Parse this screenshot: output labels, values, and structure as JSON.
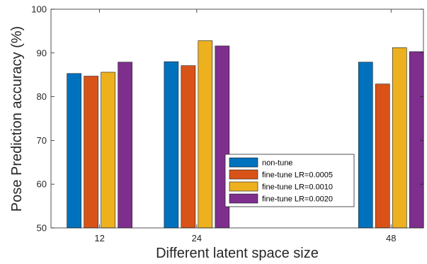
{
  "chart_data": {
    "type": "bar",
    "title": "",
    "xlabel": "Different latent space size",
    "ylabel": "Pose Prediction accuracy (%)",
    "x": [
      12,
      24,
      48
    ],
    "x_ticks": [
      "12",
      "24",
      "48"
    ],
    "xlim": [
      6,
      52
    ],
    "ylim": [
      50,
      100
    ],
    "y_ticks": [
      "50",
      "60",
      "70",
      "80",
      "90",
      "100"
    ],
    "grid": false,
    "legend_position": "bottom-right",
    "series": [
      {
        "name": "non-tune",
        "color": "#0072BD",
        "values": [
          85.3,
          88.0,
          87.9
        ]
      },
      {
        "name": "fine-tune LR=0.0005",
        "color": "#D95319",
        "values": [
          84.7,
          87.1,
          82.9
        ]
      },
      {
        "name": "fine-tune LR=0.0010",
        "color": "#EDB120",
        "values": [
          85.6,
          92.8,
          91.2
        ]
      },
      {
        "name": "fine-tune LR=0.0020",
        "color": "#7E2F8E",
        "values": [
          87.9,
          91.6,
          90.3
        ]
      }
    ]
  }
}
